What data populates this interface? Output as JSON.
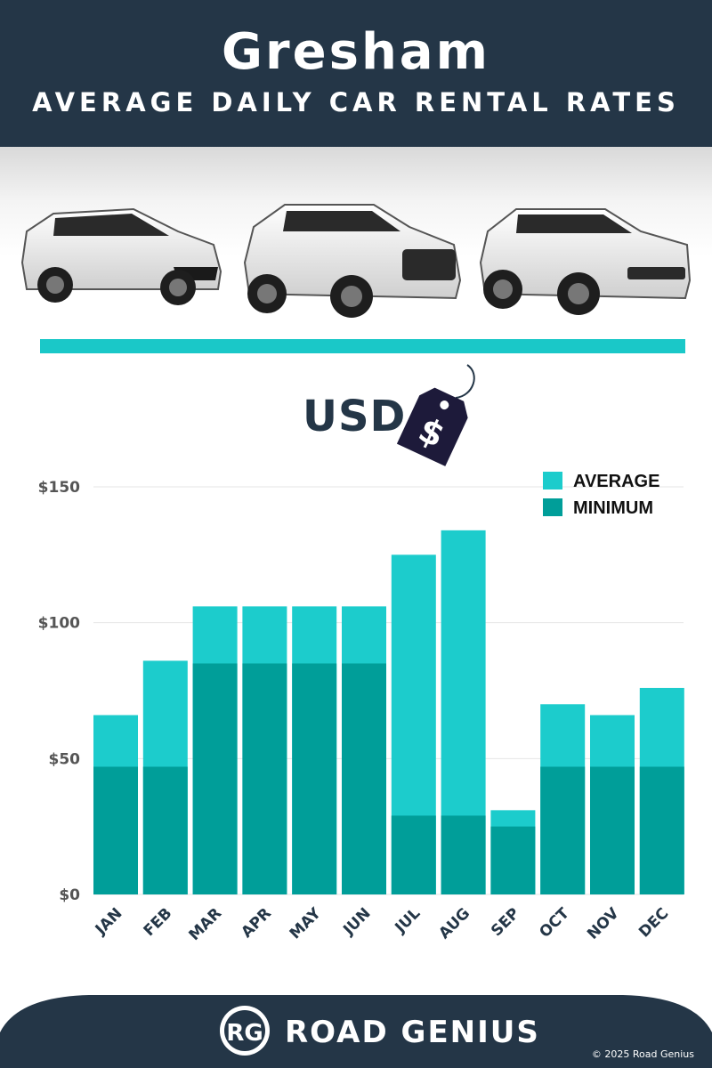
{
  "header": {
    "city": "Gresham",
    "subtitle": "AVERAGE DAILY CAR RENTAL RATES"
  },
  "currency": {
    "label": "USD",
    "symbol": "$"
  },
  "colors": {
    "header_bg": "#243647",
    "accent_teal": "#1ac8c8",
    "average": "#1ccccc",
    "minimum": "#009e99",
    "month_text": "#243647"
  },
  "chart_data": {
    "type": "bar",
    "stacked": "overlay",
    "categories": [
      "JAN",
      "FEB",
      "MAR",
      "APR",
      "MAY",
      "JUN",
      "JUL",
      "AUG",
      "SEP",
      "OCT",
      "NOV",
      "DEC"
    ],
    "series": [
      {
        "name": "AVERAGE",
        "values": [
          66,
          86,
          106,
          106,
          106,
          106,
          125,
          134,
          31,
          70,
          66,
          76
        ]
      },
      {
        "name": "MINIMUM",
        "values": [
          47,
          47,
          85,
          85,
          85,
          85,
          29,
          29,
          25,
          47,
          47,
          47
        ]
      }
    ],
    "yticks": [
      "$150",
      "$100",
      "$50",
      "$0"
    ],
    "ytick_values": [
      150,
      100,
      50,
      0
    ],
    "ylim": [
      0,
      150
    ],
    "grid": true,
    "legend": "top-right"
  },
  "footer": {
    "logo_initials": "RG",
    "brand": "ROAD GENIUS",
    "copyright": "© 2025 Road Genius"
  }
}
